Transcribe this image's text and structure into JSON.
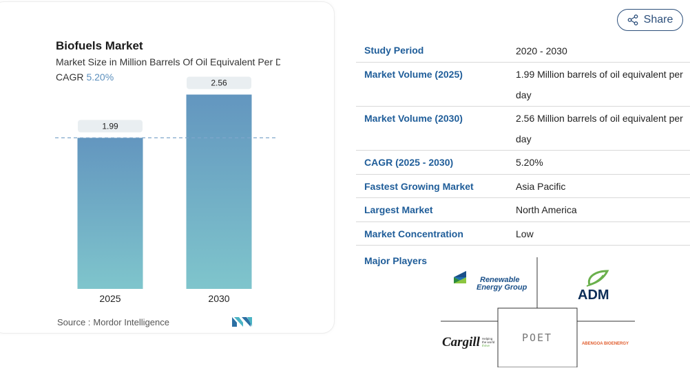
{
  "chart_card": {
    "title": "Biofuels Market",
    "subtitle": "Market Size in Million Barrels Of Oil Equivalent Per Day",
    "cagr_label": "CAGR",
    "cagr_value": "5.20%",
    "source_label": "Source :",
    "source_name": "Mordor Intelligence"
  },
  "chart_data": {
    "type": "bar",
    "title": "Biofuels Market",
    "subtitle": "Market Size in Million Barrels Of Oil Equivalent Per Day",
    "categories": [
      "2025",
      "2030"
    ],
    "values": [
      1.99,
      2.56
    ],
    "value_labels": [
      "1.99",
      "2.56"
    ],
    "ylim": [
      0,
      2.8
    ],
    "reference_line_value": 1.99,
    "grid": false,
    "bar_color_top": "#6396bf",
    "bar_color_bottom": "#7fc5cc"
  },
  "share": {
    "label": "Share",
    "icon": "share-icon"
  },
  "info": {
    "rows": [
      {
        "label": "Study Period",
        "value": "2020 - 2030"
      },
      {
        "label": "Market Volume (2025)",
        "value": "1.99 Million barrels of oil equivalent per day"
      },
      {
        "label": "Market Volume (2030)",
        "value": "2.56 Million barrels of oil equivalent per day"
      },
      {
        "label": "CAGR (2025 - 2030)",
        "value": "5.20%"
      },
      {
        "label": "Fastest Growing Market",
        "value": "Asia Pacific"
      },
      {
        "label": "Largest Market",
        "value": "North America"
      },
      {
        "label": "Market Concentration",
        "value": "Low"
      }
    ],
    "major_players_label": "Major Players"
  },
  "players": {
    "reg_line1": "Renewable",
    "reg_line2": "Energy Group",
    "adm": "ADM",
    "cargill": "Cargill",
    "cargill_tag1": "Helping",
    "cargill_tag2": "the world",
    "cargill_tag3": "thrive",
    "poet": "POET",
    "abengoa": "ABENGOA BIOENERGY"
  },
  "colors": {
    "accent_blue": "#1f5d99",
    "cagr_blue": "#5b8fbd",
    "adm_green": "#6ab04c",
    "abengoa_red": "#e05a2a"
  }
}
